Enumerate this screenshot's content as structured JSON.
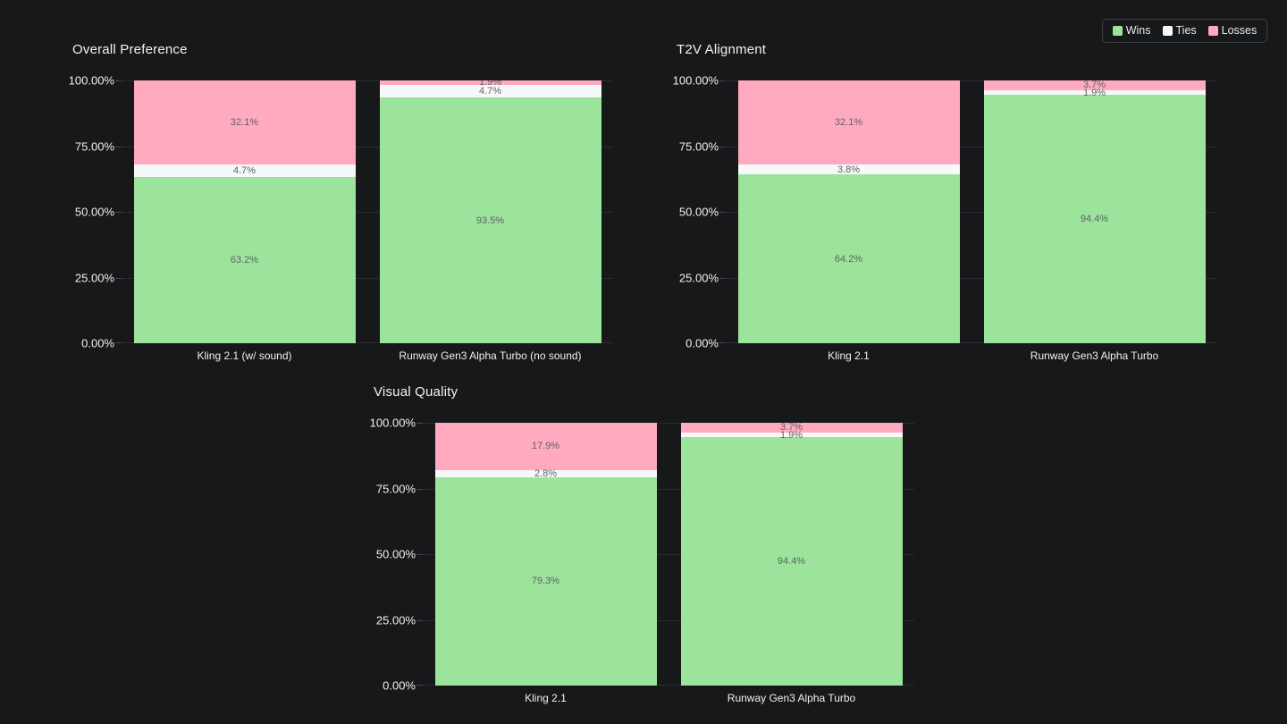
{
  "legend": {
    "position": "top-right",
    "items": [
      {
        "label": "Wins",
        "color": "#9ce39c"
      },
      {
        "label": "Ties",
        "color": "#f7f8fa"
      },
      {
        "label": "Losses",
        "color": "#ffaabf"
      }
    ]
  },
  "chart_data": [
    {
      "type": "bar",
      "stacked": true,
      "title": "Overall Preference",
      "categories": [
        "Kling 2.1 (w/ sound)",
        "Runway Gen3 Alpha Turbo (no sound)"
      ],
      "series": [
        {
          "name": "Wins",
          "color": "#9ce39c",
          "values": [
            63.2,
            93.5
          ]
        },
        {
          "name": "Ties",
          "color": "#f7f8fa",
          "values": [
            4.7,
            4.7
          ]
        },
        {
          "name": "Losses",
          "color": "#ffaabf",
          "values": [
            32.1,
            1.9
          ]
        }
      ],
      "y_ticks": [
        "0.00%",
        "25.00%",
        "50.00%",
        "75.00%",
        "100.00%"
      ],
      "ylim": [
        0,
        100
      ],
      "ylabel": "",
      "xlabel": "",
      "grid": true,
      "value_label_format": "one-decimal-percent"
    },
    {
      "type": "bar",
      "stacked": true,
      "title": "T2V Alignment",
      "categories": [
        "Kling 2.1",
        "Runway Gen3 Alpha Turbo"
      ],
      "series": [
        {
          "name": "Wins",
          "color": "#9ce39c",
          "values": [
            64.2,
            94.4
          ]
        },
        {
          "name": "Ties",
          "color": "#f7f8fa",
          "values": [
            3.8,
            1.9
          ]
        },
        {
          "name": "Losses",
          "color": "#ffaabf",
          "values": [
            32.1,
            3.7
          ]
        }
      ],
      "y_ticks": [
        "0.00%",
        "25.00%",
        "50.00%",
        "75.00%",
        "100.00%"
      ],
      "ylim": [
        0,
        100
      ],
      "ylabel": "",
      "xlabel": "",
      "grid": true,
      "value_label_format": "one-decimal-percent"
    },
    {
      "type": "bar",
      "stacked": true,
      "title": "Visual Quality",
      "categories": [
        "Kling 2.1",
        "Runway Gen3 Alpha Turbo"
      ],
      "series": [
        {
          "name": "Wins",
          "color": "#9ce39c",
          "values": [
            79.3,
            94.4
          ]
        },
        {
          "name": "Ties",
          "color": "#f7f8fa",
          "values": [
            2.8,
            1.9
          ]
        },
        {
          "name": "Losses",
          "color": "#ffaabf",
          "values": [
            17.9,
            3.7
          ]
        }
      ],
      "y_ticks": [
        "0.00%",
        "25.00%",
        "50.00%",
        "75.00%",
        "100.00%"
      ],
      "ylim": [
        0,
        100
      ],
      "ylabel": "",
      "xlabel": "",
      "grid": true,
      "value_label_format": "one-decimal-percent"
    }
  ]
}
